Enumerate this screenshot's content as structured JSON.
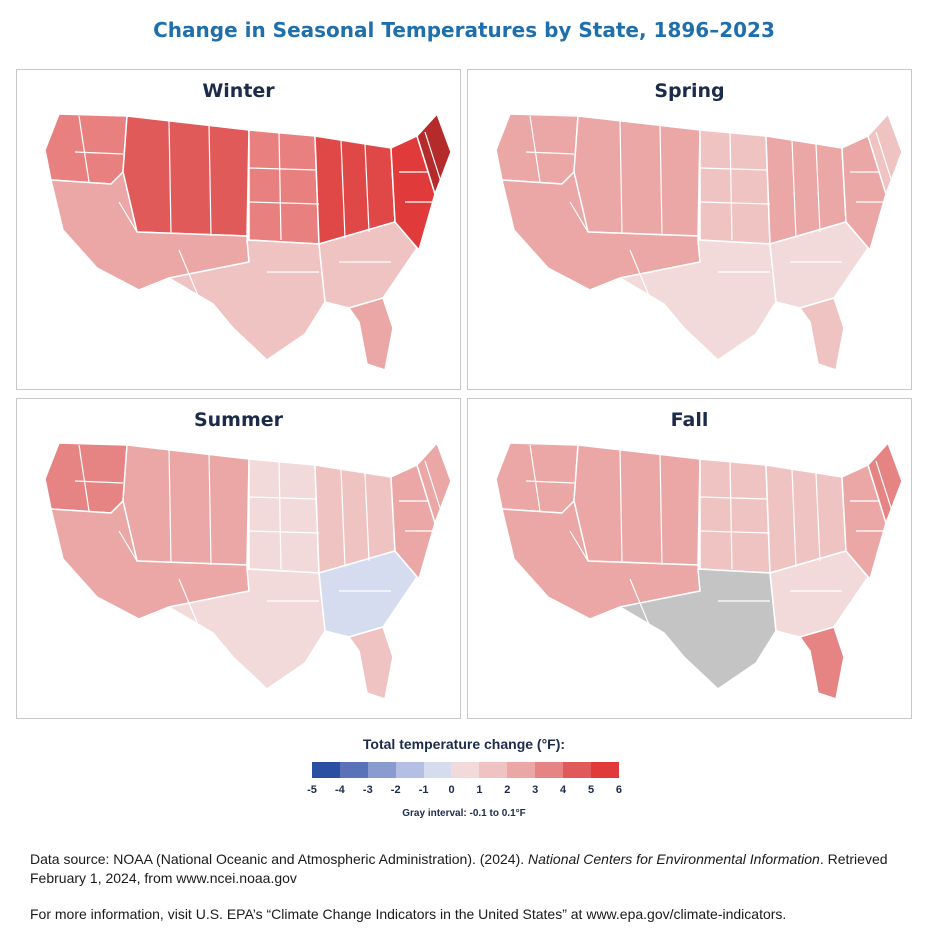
{
  "title": "Change in Seasonal Temperatures by State, 1896–2023",
  "panels": [
    {
      "season": "Winter"
    },
    {
      "season": "Spring"
    },
    {
      "season": "Summer"
    },
    {
      "season": "Fall"
    }
  ],
  "legend": {
    "title": "Total temperature change (°F):",
    "ticks": [
      "-5",
      "-4",
      "-3",
      "-2",
      "-1",
      "0",
      "1",
      "2",
      "3",
      "4",
      "5",
      "6"
    ],
    "colors": [
      "#2a4fa3",
      "#5a72b8",
      "#8a9bd0",
      "#b4bfe3",
      "#d6dcf0",
      "#f3dada",
      "#f0c3c3",
      "#eba6a6",
      "#e68484",
      "#e05a5a",
      "#e03a3a",
      "#b52a2a"
    ],
    "gray_note": "Gray interval: -0.1 to 0.1°F",
    "gray_color": "#c4c4c4"
  },
  "source": {
    "prefix": "Data source: NOAA (National Oceanic and Atmospheric Administration). (2024). ",
    "italic": "National Centers for Environmental Information",
    "suffix": ". Retrieved February 1, 2024, from www.ncei.noaa.gov"
  },
  "more_info": "For more information, visit U.S. EPA’s “Climate Change Indicators in the United States” at www.epa.gov/climate-indicators.",
  "regions": [
    "pnw",
    "mountain",
    "southwest",
    "plains",
    "south",
    "midwest",
    "southeast",
    "northeast",
    "newengland",
    "florida"
  ],
  "season_region_colors": {
    "Winter": {
      "pnw": "#e98080",
      "mountain": "#e05a5a",
      "southwest": "#eba6a6",
      "plains": "#e98080",
      "south": "#f0c3c3",
      "midwest": "#e04848",
      "southeast": "#f0c3c3",
      "northeast": "#e03a3a",
      "newengland": "#b52a2a",
      "florida": "#eba6a6"
    },
    "Spring": {
      "pnw": "#eba6a6",
      "mountain": "#eba6a6",
      "southwest": "#eba6a6",
      "plains": "#f0c3c3",
      "south": "#f3dada",
      "midwest": "#eba6a6",
      "southeast": "#f3dada",
      "northeast": "#eba6a6",
      "newengland": "#f0c3c3",
      "florida": "#f0c3c3"
    },
    "Summer": {
      "pnw": "#e68484",
      "mountain": "#eba6a6",
      "southwest": "#eba6a6",
      "plains": "#f3dada",
      "south": "#f3dada",
      "midwest": "#f0c3c3",
      "southeast": "#d6dcf0",
      "northeast": "#eba6a6",
      "newengland": "#eba6a6",
      "florida": "#f0c3c3"
    },
    "Fall": {
      "pnw": "#eba6a6",
      "mountain": "#eba6a6",
      "southwest": "#eba6a6",
      "plains": "#f0c3c3",
      "south": "#c4c4c4",
      "midwest": "#f0c3c3",
      "southeast": "#f3dada",
      "northeast": "#eba6a6",
      "newengland": "#e68484",
      "florida": "#e68484"
    }
  }
}
